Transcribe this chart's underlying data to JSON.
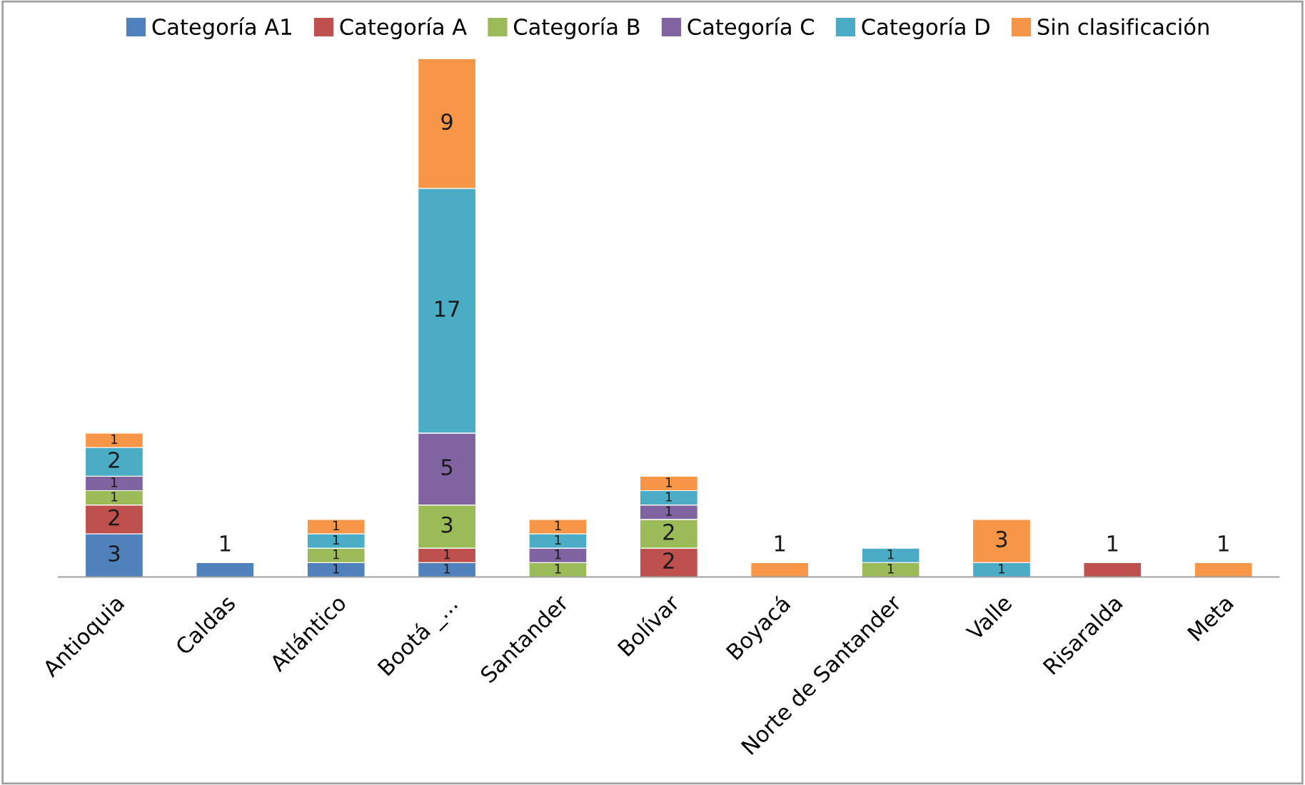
{
  "chart_data": {
    "type": "bar",
    "stacked": true,
    "data_labels": true,
    "legend": "top",
    "grid": false,
    "categories": [
      "Antioquia",
      "Caldas",
      "Atlántico",
      "Bootá _...",
      "Santander",
      "Bolívar",
      "Boyacá",
      "Norte de Santander",
      "Valle",
      "Risaralda",
      "Meta"
    ],
    "series": [
      {
        "name": "Categoría A1",
        "color": "#4f81bd",
        "values": [
          3,
          1,
          1,
          1,
          null,
          null,
          null,
          null,
          null,
          null,
          null
        ]
      },
      {
        "name": "Categoría A",
        "color": "#c0504d",
        "values": [
          2,
          null,
          null,
          1,
          null,
          2,
          null,
          null,
          null,
          1,
          null
        ]
      },
      {
        "name": "Categoría B",
        "color": "#9bbb59",
        "values": [
          1,
          null,
          1,
          3,
          1,
          2,
          null,
          1,
          null,
          null,
          null
        ]
      },
      {
        "name": "Categoría C",
        "color": "#8064a2",
        "values": [
          1,
          null,
          null,
          5,
          1,
          1,
          null,
          null,
          null,
          null,
          null
        ]
      },
      {
        "name": "Categoría D",
        "color": "#4bacc6",
        "values": [
          2,
          null,
          1,
          17,
          1,
          1,
          null,
          1,
          1,
          null,
          null
        ]
      },
      {
        "name": "Sin clasificación",
        "color": "#f79646",
        "values": [
          1,
          null,
          1,
          9,
          1,
          1,
          1,
          null,
          3,
          null,
          1
        ]
      }
    ]
  }
}
